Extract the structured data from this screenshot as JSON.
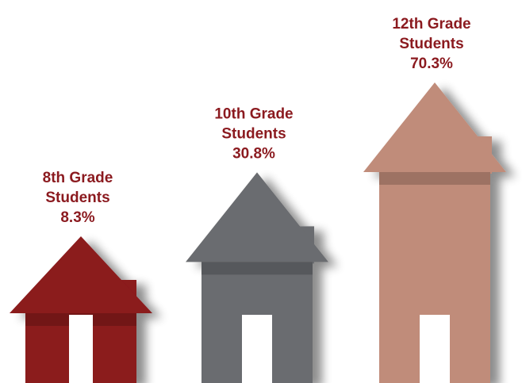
{
  "chart_data": {
    "type": "bar",
    "categories": [
      "8th Grade Students",
      "10th Grade Students",
      "12th Grade Students"
    ],
    "values": [
      8.3,
      30.8,
      70.3
    ],
    "unit": "%",
    "grid": false,
    "legend": "none",
    "labels": [
      {
        "line1": "8th Grade",
        "line2": "Students",
        "value_text": "8.3%"
      },
      {
        "line1": "10th Grade",
        "line2": "Students",
        "value_text": "30.8%"
      },
      {
        "line1": "12th Grade",
        "line2": "Students",
        "value_text": "70.3%"
      }
    ],
    "colors": [
      "#8b1a1f",
      "#6b6c6f",
      "#c08c7a"
    ],
    "label_color": "#8b1a1f",
    "shape": "house"
  }
}
